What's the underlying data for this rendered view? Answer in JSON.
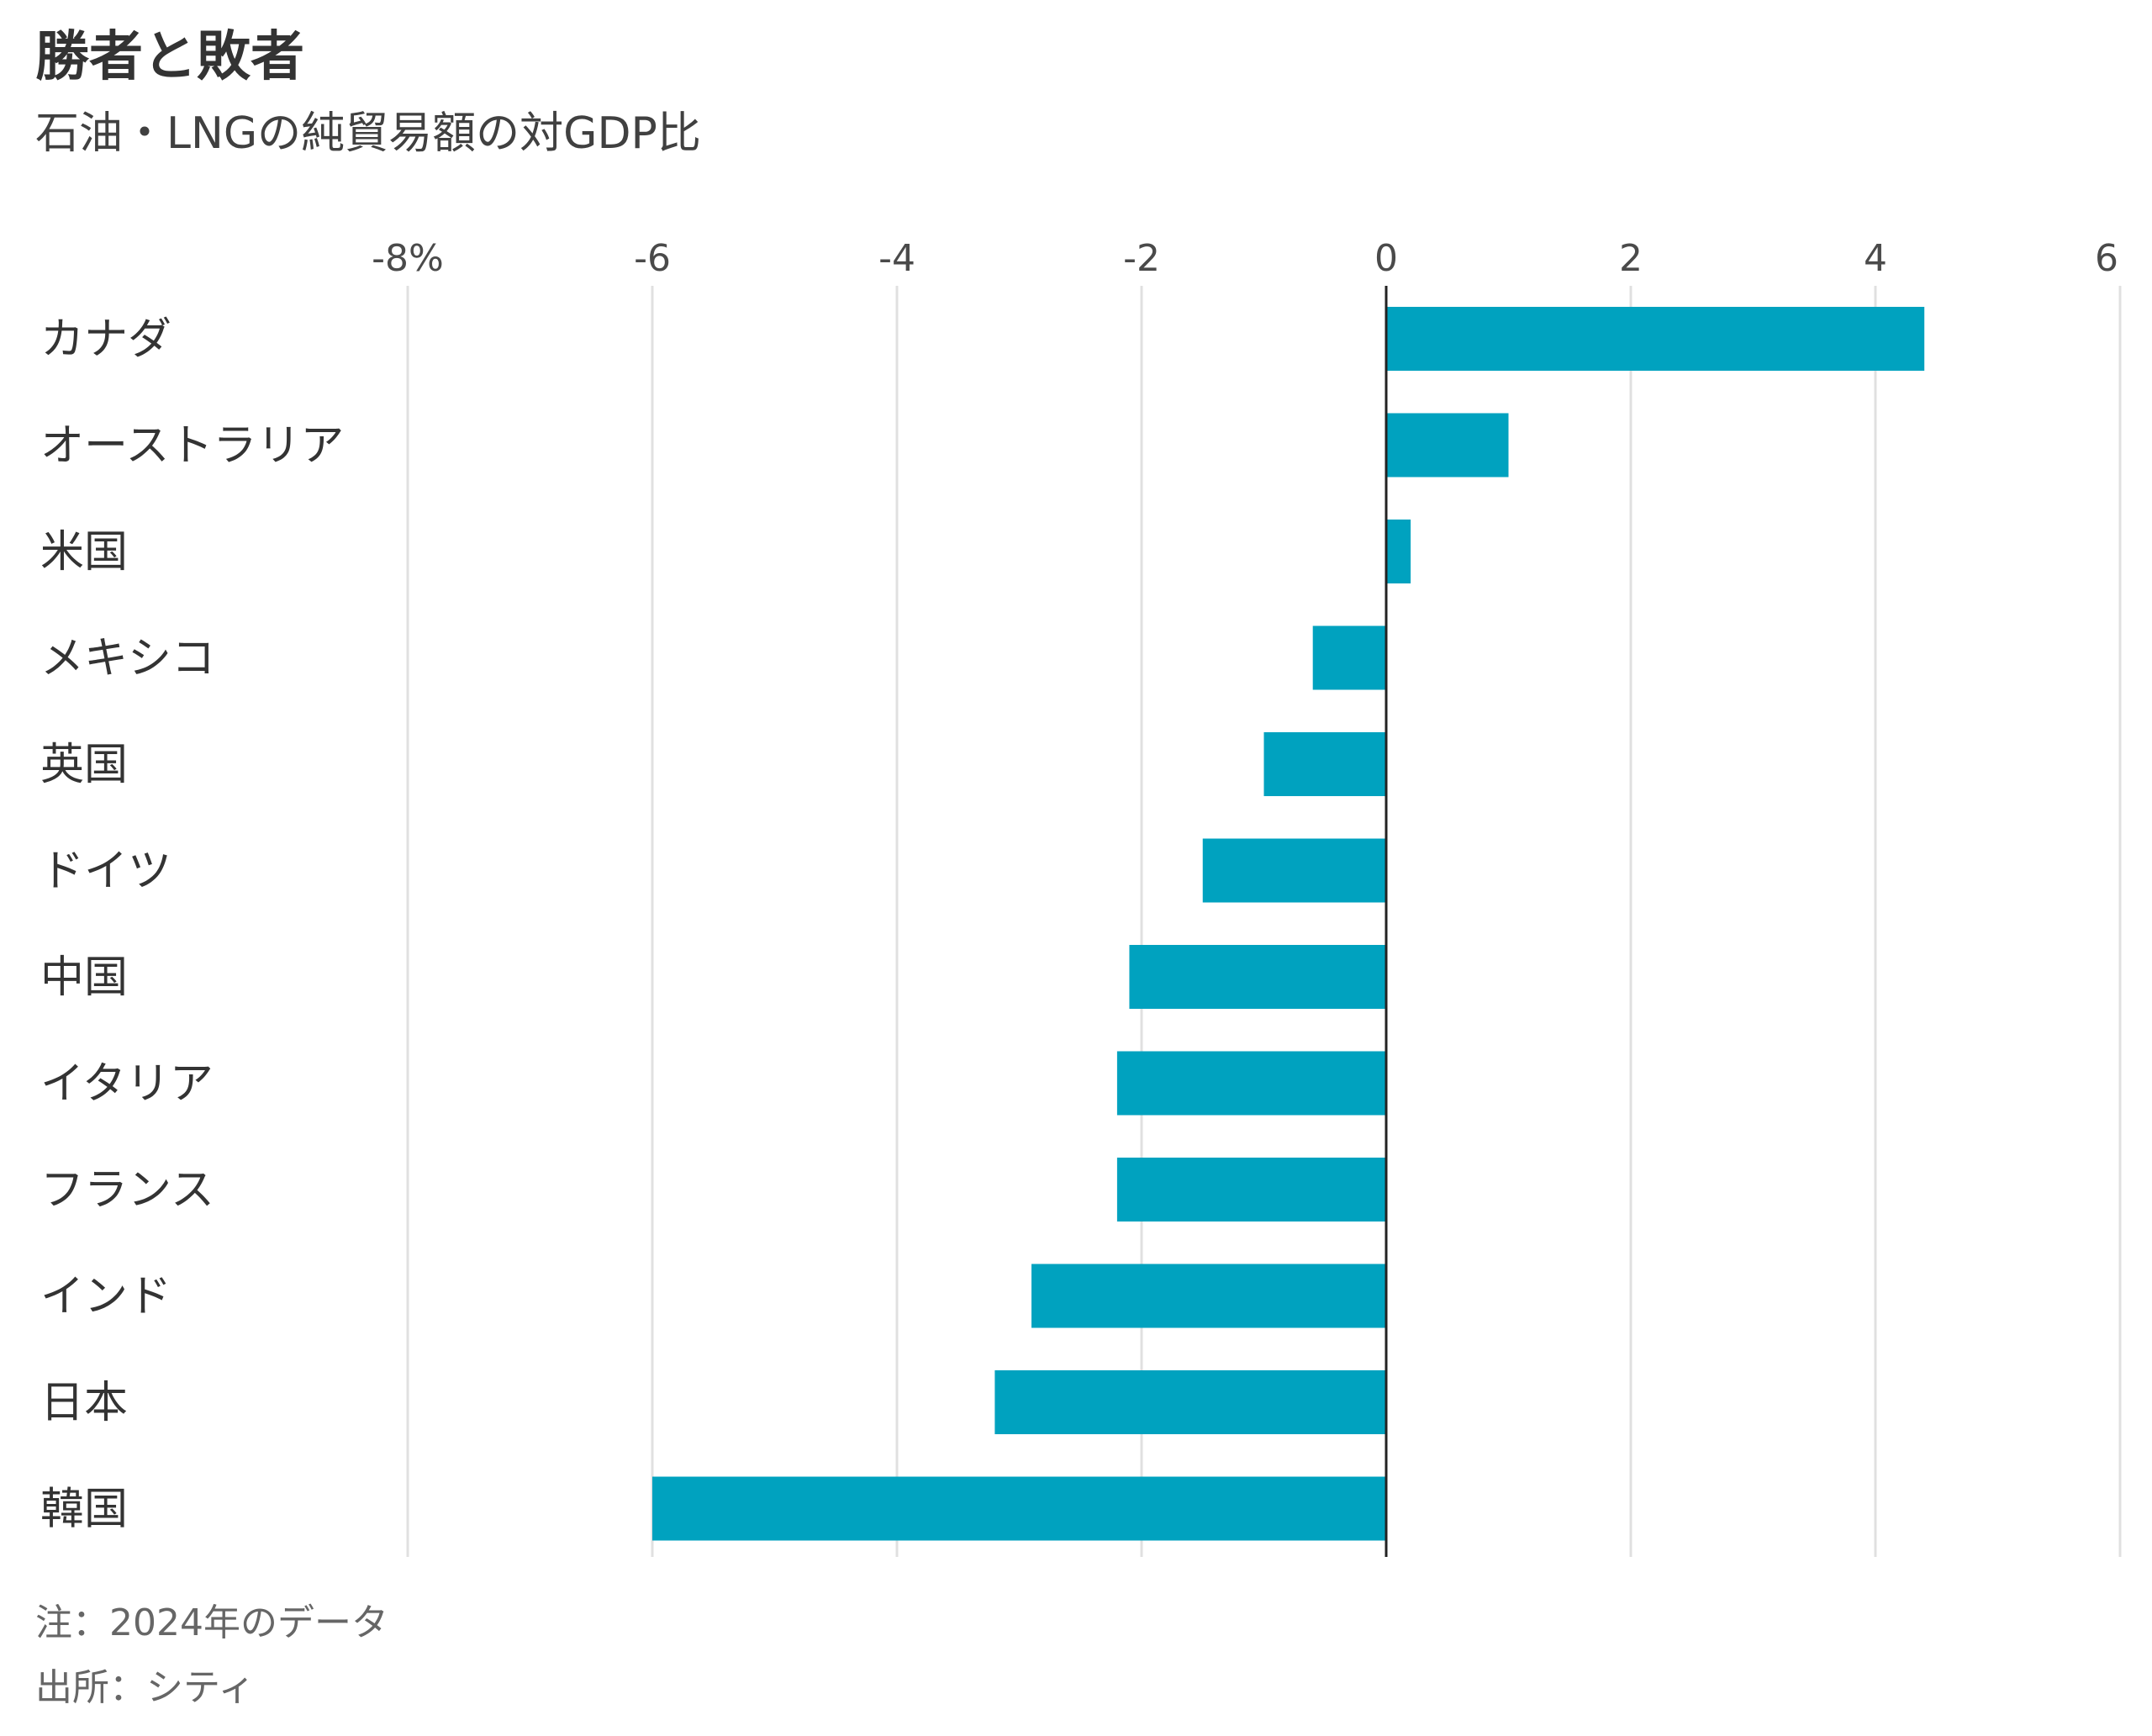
{
  "chart_data": {
    "type": "bar",
    "orientation": "horizontal",
    "title": "勝者と敗者",
    "subtitle": "石油・LNGの純貿易額の対GDP比",
    "categories": [
      "カナダ",
      "オーストラリア",
      "米国",
      "メキシコ",
      "英国",
      "ドイツ",
      "中国",
      "イタリア",
      "フランス",
      "インド",
      "日本",
      "韓国"
    ],
    "values": [
      4.4,
      1.0,
      0.2,
      -0.6,
      -1.0,
      -1.5,
      -2.1,
      -2.2,
      -2.2,
      -2.9,
      -3.2,
      -6.0
    ],
    "xlim": [
      -8,
      6
    ],
    "xticks": [
      -8,
      -6,
      -4,
      -2,
      0,
      2,
      4,
      6
    ],
    "xtick_labels": [
      "-8%",
      "-6",
      "-4",
      "-2",
      "0",
      "2",
      "4",
      "6"
    ],
    "xlabel": "",
    "ylabel": "",
    "grid": true,
    "bar_color": "#00A2BF",
    "grid_color": "#E0E0E0",
    "zero_line_color": "#222222"
  },
  "notes": {
    "note": "注：2024年のデータ",
    "source": "出所：シティ"
  }
}
